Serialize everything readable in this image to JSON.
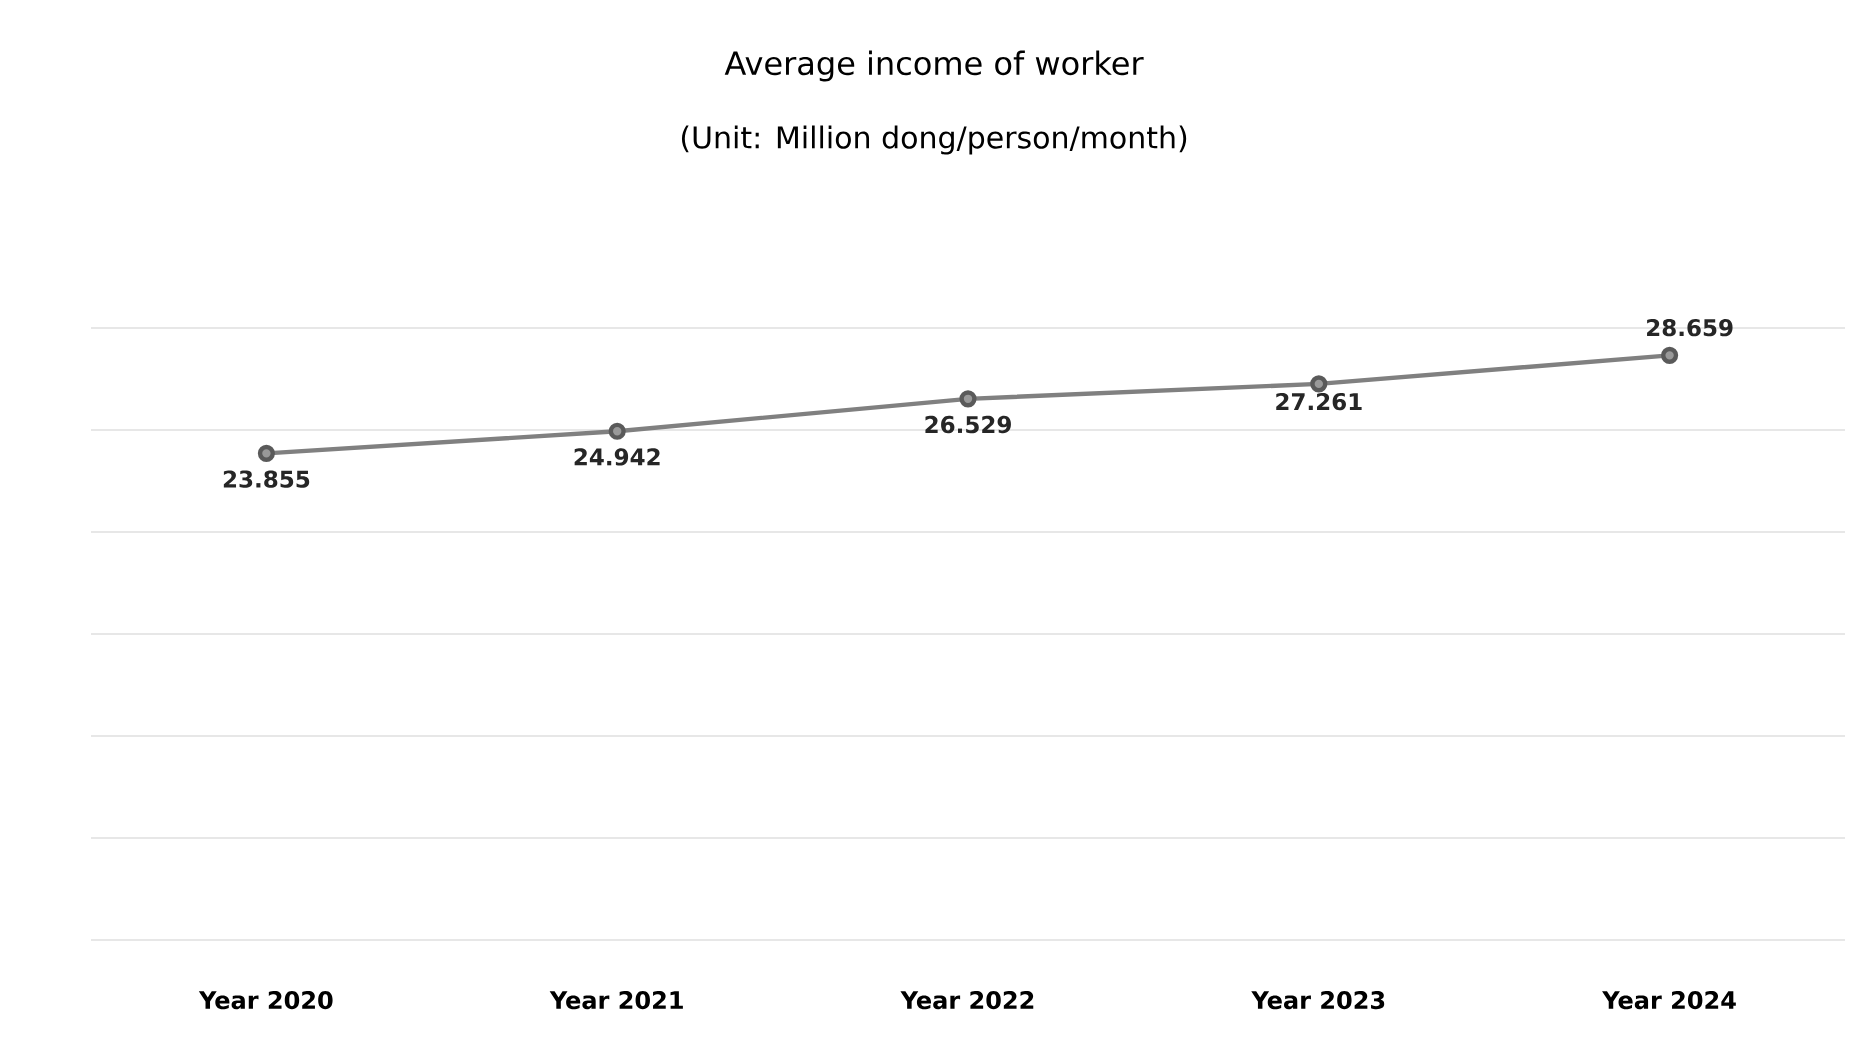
{
  "chart_data": {
    "type": "line",
    "title": "Average income of worker",
    "subtitle": "(Unit: Million dong/person/month)",
    "categories": [
      "Year 2020",
      "Year 2021",
      "Year 2022",
      "Year 2023",
      "Year 2024"
    ],
    "values": [
      23.855,
      24.942,
      26.529,
      27.261,
      28.659
    ],
    "color": "#808080",
    "marker": "circle",
    "ylim": [
      0,
      30
    ],
    "yticks": [
      {
        "value": 0,
        "label": null
      },
      {
        "value": 5,
        "label": null
      },
      {
        "value": 10,
        "label": null
      },
      {
        "value": 15,
        "label": null
      },
      {
        "value": 20,
        "label": null
      },
      {
        "value": 25,
        "label": null
      },
      {
        "value": 30,
        "label": null
      }
    ],
    "tick_labels": "x",
    "grid": "y",
    "data_labels": true
  }
}
